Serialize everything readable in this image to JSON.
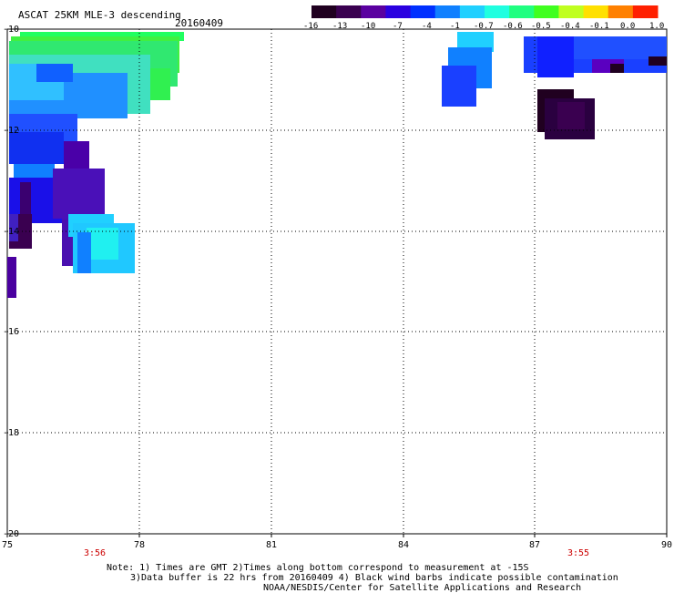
{
  "title": "ASCAT 25KM MLE-3 descending",
  "date": "20160409",
  "colorbar": {
    "labels": [
      "-16",
      "-13",
      "-10",
      "-7",
      "-4",
      "-1",
      "-0.7",
      "-0.6",
      "-0.5",
      "-0.4",
      "-0.1",
      "0.0",
      "1.0"
    ],
    "colors": [
      "#200020",
      "#3a0050",
      "#5a00a0",
      "#2a00e0",
      "#0030ff",
      "#1080ff",
      "#20d0ff",
      "#20ffe0",
      "#20ff80",
      "#40ff20",
      "#c0ff20",
      "#ffe000",
      "#ff8000",
      "#ff2000"
    ]
  },
  "axes": {
    "y_labels": [
      "-10",
      "-12",
      "-14",
      "-16",
      "-18",
      "-20"
    ],
    "x_labels": [
      "75",
      "78",
      "81",
      "84",
      "87",
      "90"
    ]
  },
  "times": [
    "3:56",
    "3:55"
  ],
  "notes": [
    "Note: 1) Times are GMT 2)Times along bottom correspond to measurement at -15S",
    "3)Data buffer is 22 hrs from 20160409 4) Black wind barbs indicate possible contamination",
    "NOAA/NESDIS/Center for Satellite Applications and Research"
  ]
}
